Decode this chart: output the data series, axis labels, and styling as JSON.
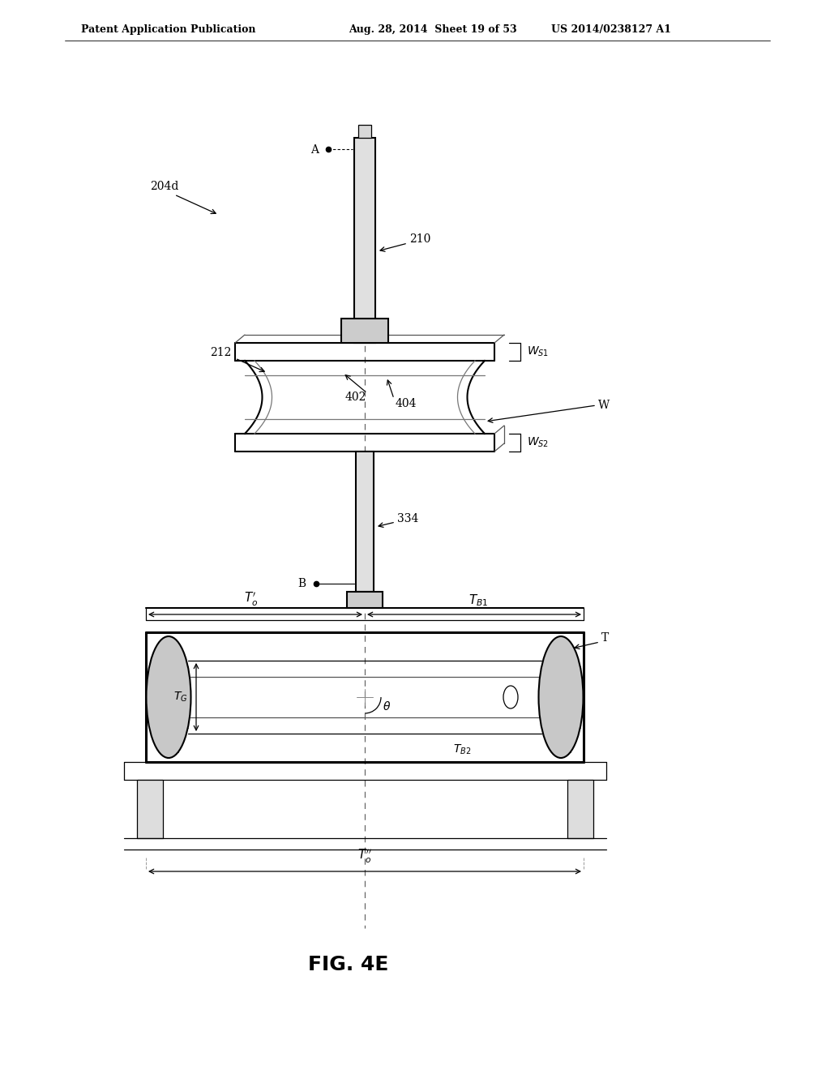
{
  "background_color": "#ffffff",
  "line_color": "#000000",
  "fig_width": 10.24,
  "fig_height": 13.2,
  "header_text1": "Patent Application Publication",
  "header_text2": "Aug. 28, 2014  Sheet 19 of 53",
  "header_text3": "US 2014/0238127 A1",
  "figure_label": "FIG. 4E"
}
